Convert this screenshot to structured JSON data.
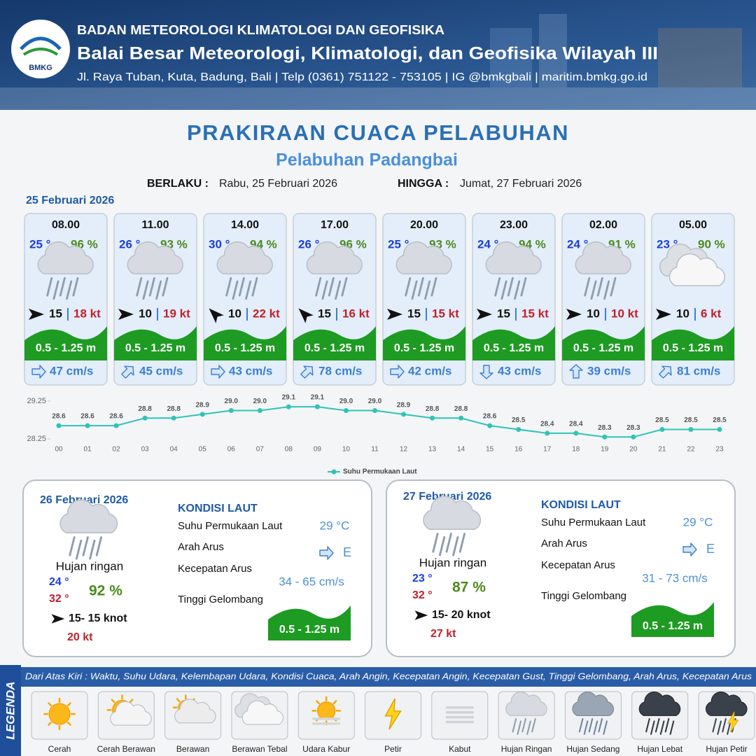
{
  "header": {
    "logo": "BMKG",
    "agency": "BADAN METEOROLOGI KLIMATOLOGI DAN GEOFISIKA",
    "office": "Balai Besar Meteorologi, Klimatologi, dan Geofisika Wilayah III",
    "contact": "Jl. Raya Tuban, Kuta, Badung, Bali | Telp (0361) 751122 - 753105 | IG @bmkgbali | maritim.bmkg.go.id"
  },
  "title": "PRAKIRAAN CUACA PELABUHAN",
  "port": "Pelabuhan Padangbai",
  "validity": {
    "from_label": "BERLAKU :",
    "from": "Rabu, 25 Februari 2026",
    "to_label": "HINGGA :",
    "to": "Jumat, 27 Februari 2026"
  },
  "first_day": "25 Februari 2026",
  "cards": [
    {
      "time": "08.00",
      "temp": "25 °",
      "humidity": "96 %",
      "condition": "Hujan Ringan",
      "wind_dir": "E",
      "wind": "15",
      "gust": "18 kt",
      "wave": "0.5 - 1.25 m",
      "current_dir": "E",
      "current": "47 cm/s"
    },
    {
      "time": "11.00",
      "temp": "26 °",
      "humidity": "93 %",
      "condition": "Hujan Ringan",
      "wind_dir": "E",
      "wind": "10",
      "gust": "19 kt",
      "wave": "0.5 - 1.25 m",
      "current_dir": "NE",
      "current": "45 cm/s"
    },
    {
      "time": "14.00",
      "temp": "30 °",
      "humidity": "94 %",
      "condition": "Hujan Ringan",
      "wind_dir": "NW",
      "wind": "10",
      "gust": "22 kt",
      "wave": "0.5 - 1.25 m",
      "current_dir": "E",
      "current": "43 cm/s"
    },
    {
      "time": "17.00",
      "temp": "26 °",
      "humidity": "96 %",
      "condition": "Hujan Ringan",
      "wind_dir": "NW",
      "wind": "15",
      "gust": "16 kt",
      "wave": "0.5 - 1.25 m",
      "current_dir": "NE",
      "current": "78 cm/s"
    },
    {
      "time": "20.00",
      "temp": "25 °",
      "humidity": "93 %",
      "condition": "Hujan Ringan",
      "wind_dir": "E",
      "wind": "15",
      "gust": "15 kt",
      "wave": "0.5 - 1.25 m",
      "current_dir": "E",
      "current": "42 cm/s"
    },
    {
      "time": "23.00",
      "temp": "24 °",
      "humidity": "94 %",
      "condition": "Hujan Ringan",
      "wind_dir": "E",
      "wind": "15",
      "gust": "15 kt",
      "wave": "0.5 - 1.25 m",
      "current_dir": "S",
      "current": "43 cm/s"
    },
    {
      "time": "02.00",
      "temp": "24 °",
      "humidity": "91 %",
      "condition": "Hujan Ringan",
      "wind_dir": "E",
      "wind": "10",
      "gust": "10 kt",
      "wave": "0.5 - 1.25 m",
      "current_dir": "N",
      "current": "39 cm/s"
    },
    {
      "time": "05.00",
      "temp": "23 °",
      "humidity": "90 %",
      "condition": "Berawan Tebal",
      "wind_dir": "E",
      "wind": "10",
      "gust": "6 kt",
      "wave": "0.5 - 1.25 m",
      "current_dir": "NE",
      "current": "81 cm/s"
    }
  ],
  "chart_data": {
    "type": "line",
    "categories": [
      "00",
      "01",
      "02",
      "03",
      "04",
      "05",
      "06",
      "07",
      "08",
      "09",
      "10",
      "11",
      "12",
      "13",
      "14",
      "15",
      "16",
      "17",
      "18",
      "19",
      "20",
      "21",
      "22",
      "23"
    ],
    "series": [
      {
        "name": "Suhu Permukaan Laut",
        "color": "#2ec4b6",
        "values": [
          28.6,
          28.6,
          28.6,
          28.8,
          28.8,
          28.9,
          29.0,
          29.0,
          29.1,
          29.1,
          29.0,
          29.0,
          28.9,
          28.8,
          28.8,
          28.6,
          28.5,
          28.4,
          28.4,
          28.3,
          28.3,
          28.5,
          28.5,
          28.5
        ],
        "value_labels": [
          "28.6",
          "28.6",
          "28.6",
          "28.8",
          "28.8",
          "28.9",
          "29.0",
          "29.0",
          "29.1",
          "29.1",
          "29.0",
          "29.0",
          "28.9",
          "28.8",
          "28.8",
          "28.6",
          "28.5",
          "28.4",
          "28.4",
          "28.3",
          "28.3",
          "28.5",
          "28.5",
          "28.5"
        ]
      }
    ],
    "ylim": [
      28.25,
      29.25
    ],
    "yticks": [
      28.25,
      29.25
    ]
  },
  "days": [
    {
      "date": "26 Februari 2026",
      "condition": "Hujan ringan",
      "temp_min": "24 °",
      "temp_max": "32 °",
      "humidity": "92 %",
      "wind_dir": "E",
      "wind": "15- 15 knot",
      "gust": "20 kt",
      "sea": {
        "title": "KONDISI LAUT",
        "sst_label": "Suhu Permukaan Laut",
        "sst": "29 °C",
        "current_dir_label": "Arah Arus",
        "current_dir": "E",
        "current_speed_label": "Kecepatan Arus",
        "current_speed": "34 - 65 cm/s",
        "wave_label": "Tinggi Gelombang",
        "wave": "0.5 - 1.25 m"
      }
    },
    {
      "date": "27 Februari 2026",
      "condition": "Hujan ringan",
      "temp_min": "23 °",
      "temp_max": "32 °",
      "humidity": "87 %",
      "wind_dir": "E",
      "wind": "15- 20 knot",
      "gust": "27 kt",
      "sea": {
        "title": "KONDISI LAUT",
        "sst_label": "Suhu Permukaan Laut",
        "sst": "29 °C",
        "current_dir_label": "Arah Arus",
        "current_dir": "E",
        "current_speed_label": "Kecepatan Arus",
        "current_speed": "31 - 73 cm/s",
        "wave_label": "Tinggi Gelombang",
        "wave": "0.5 - 1.25 m"
      }
    }
  ],
  "legend": {
    "title": "LEGENDA",
    "description": "Dari Atas Kiri : Waktu, Suhu Udara, Kelembapan Udara, Kondisi Cuaca, Arah Angin, Kecepatan Angin, Kecepatan Gust, Tinggi Gelombang, Arah Arus, Kecepatan Arus",
    "items": [
      "Cerah",
      "Cerah Berawan",
      "Berawan",
      "Berawan Tebal",
      "Udara Kabur",
      "Petir",
      "Kabut",
      "Hujan Ringan",
      "Hujan Sedang",
      "Hujan Lebat",
      "Hujan Petir"
    ]
  }
}
